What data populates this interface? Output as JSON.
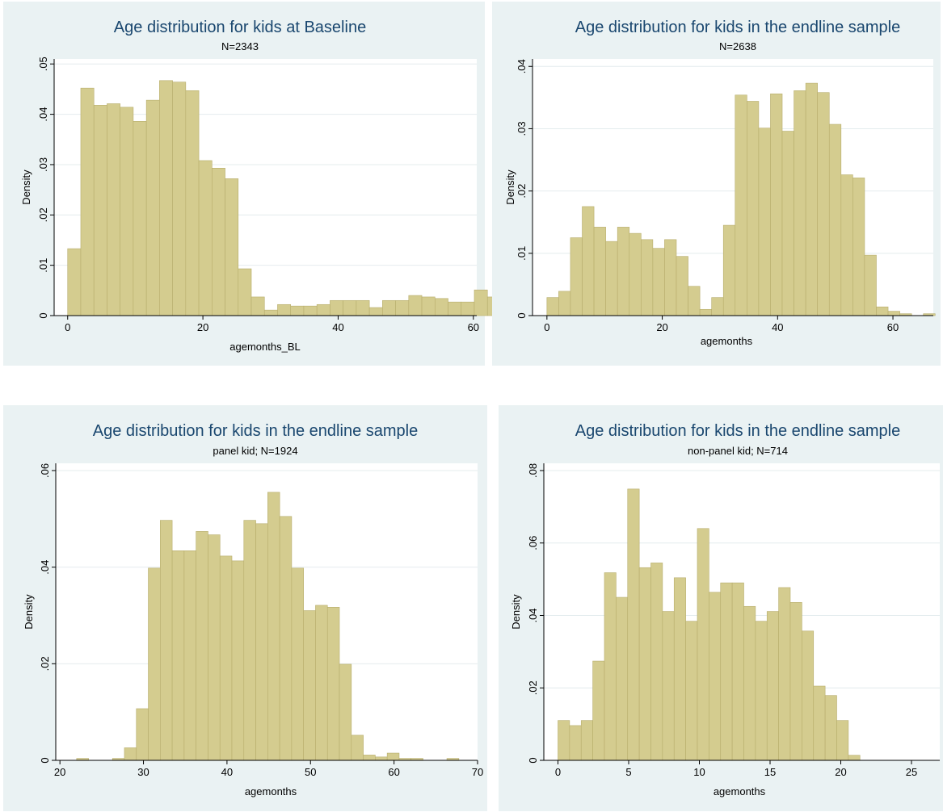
{
  "colors": {
    "panel_bg": "#eaf2f3",
    "plot_bg": "#ffffff",
    "bar_fill": "#d4cc8f",
    "bar_stroke": "#b7ad6c",
    "grid": "#e4ecee",
    "title": "#1a476f",
    "axis": "#000000"
  },
  "chart_data": [
    {
      "type": "bar",
      "title": "Age distribution for kids at Baseline",
      "subtitle": "N=2343",
      "xlabel": "agemonths_BL",
      "ylabel": "Density",
      "xlim": [
        -2,
        60.5
      ],
      "ylim": [
        0,
        0.051
      ],
      "x_ticks": [
        0,
        20,
        40,
        60
      ],
      "y_ticks": [
        0,
        0.01,
        0.02,
        0.03,
        0.04,
        0.05
      ],
      "y_tick_labels": [
        "0",
        ".01",
        ".02",
        ".03",
        ".04",
        ".05"
      ],
      "grid": true,
      "bin_start": 0,
      "bin_width": 1.94,
      "values": [
        0.0133,
        0.0452,
        0.0418,
        0.0421,
        0.0414,
        0.0386,
        0.0428,
        0.0467,
        0.0464,
        0.0447,
        0.0308,
        0.0293,
        0.0272,
        0.0093,
        0.0037,
        0.0011,
        0.0022,
        0.0019,
        0.0019,
        0.0022,
        0.003,
        0.003,
        0.003,
        0.0016,
        0.003,
        0.003,
        0.004,
        0.0037,
        0.0034,
        0.0027,
        0.0027,
        0.0051,
        0.0037
      ]
    },
    {
      "type": "bar",
      "title": "Age distribution for kids in the endline sample",
      "subtitle": "N=2638",
      "xlabel": "agemonths",
      "ylabel": "Density",
      "xlim": [
        -2.5,
        67
      ],
      "ylim": [
        0,
        0.0412
      ],
      "x_ticks": [
        0,
        20,
        40,
        60
      ],
      "y_ticks": [
        0,
        0.01,
        0.02,
        0.03,
        0.04
      ],
      "y_tick_labels": [
        "0",
        ".01",
        ".02",
        ".03",
        ".04"
      ],
      "grid": true,
      "bin_start": 0,
      "bin_width": 2.04,
      "values": [
        0.0029,
        0.0039,
        0.0125,
        0.0175,
        0.0142,
        0.0119,
        0.0142,
        0.0132,
        0.0122,
        0.0108,
        0.0122,
        0.0095,
        0.0047,
        0.001,
        0.0029,
        0.0145,
        0.0354,
        0.0344,
        0.0301,
        0.0356,
        0.0296,
        0.0361,
        0.0373,
        0.0358,
        0.0307,
        0.0226,
        0.0221,
        0.0097,
        0.0014,
        0.0007,
        0.0003,
        0.0,
        0.0003
      ]
    },
    {
      "type": "bar",
      "title": "Age distribution for kids in the endline sample",
      "subtitle": "panel kid; N=1924",
      "xlabel": "agemonths",
      "ylabel": "Density",
      "xlim": [
        19.5,
        70
      ],
      "ylim": [
        0,
        0.0615
      ],
      "x_ticks": [
        20,
        30,
        40,
        50,
        60,
        70
      ],
      "y_ticks": [
        0,
        0.02,
        0.04,
        0.06
      ],
      "y_tick_labels": [
        "0",
        ".02",
        ".04",
        ".06"
      ],
      "grid": true,
      "bin_start": 22,
      "bin_width": 1.43,
      "values": [
        0.0004,
        0.0,
        0.0,
        0.0004,
        0.0026,
        0.0107,
        0.0398,
        0.0497,
        0.0434,
        0.0434,
        0.0474,
        0.0467,
        0.0423,
        0.0413,
        0.0497,
        0.049,
        0.0555,
        0.0505,
        0.0398,
        0.031,
        0.0321,
        0.0317,
        0.0199,
        0.0052,
        0.0011,
        0.0007,
        0.0015,
        0.0004,
        0.0004,
        0.0,
        0.0,
        0.0004
      ]
    },
    {
      "type": "bar",
      "title": "Age distribution for kids in the endline sample",
      "subtitle": "non-panel kid; N=714",
      "xlabel": "agemonths",
      "ylabel": "Density",
      "xlim": [
        -1,
        27
      ],
      "ylim": [
        0,
        0.082
      ],
      "x_ticks": [
        0,
        5,
        10,
        15,
        20,
        25
      ],
      "y_ticks": [
        0,
        0.02,
        0.04,
        0.06,
        0.08
      ],
      "y_tick_labels": [
        "0",
        ".02",
        ".04",
        ".06",
        ".08"
      ],
      "grid": true,
      "bin_start": 0,
      "bin_width": 0.8214,
      "values": [
        0.011,
        0.0096,
        0.011,
        0.0274,
        0.0518,
        0.045,
        0.0749,
        0.0532,
        0.0545,
        0.0411,
        0.0504,
        0.0384,
        0.064,
        0.0464,
        0.049,
        0.049,
        0.0425,
        0.0384,
        0.0411,
        0.0477,
        0.0436,
        0.0357,
        0.0205,
        0.0179,
        0.011,
        0.0014
      ]
    }
  ]
}
